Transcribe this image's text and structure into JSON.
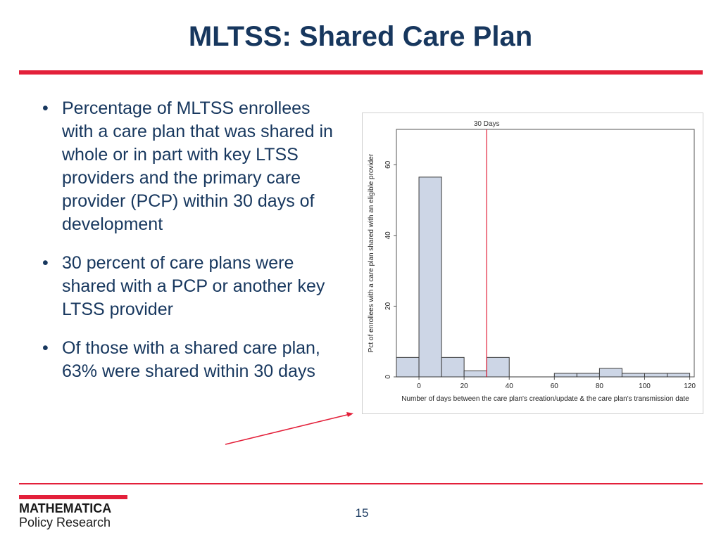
{
  "slide": {
    "title": "MLTSS: Shared Care Plan",
    "page_number": "15",
    "logo": {
      "line1": "MATHEMATICA",
      "line2": "Policy Research"
    },
    "bullets": [
      "Percentage of MLTSS enrollees with a care plan that was shared in whole or in part with key LTSS providers and the primary care provider (PCP) within 30 days of development",
      "30 percent of care plans were shared with a PCP or another key LTSS provider",
      "Of those with a shared care plan, 63% were shared within 30 days"
    ],
    "bullet_glyph": "•",
    "colors": {
      "title": "#17375e",
      "accent": "#e3203a",
      "bar_fill": "#cdd6e6",
      "bar_stroke": "#3a3a3a",
      "ref_line": "#e3203a"
    }
  },
  "chart_data": {
    "type": "bar",
    "subtype": "histogram",
    "xlabel": "Number of days between the care plan's creation/update & the care plan's transmission date",
    "ylabel": "Pct of enrollees with a care plan shared with an eligible provider",
    "xlim": [
      0,
      120
    ],
    "ylim": [
      0,
      70
    ],
    "xticks": [
      0,
      20,
      40,
      60,
      80,
      100,
      120
    ],
    "yticks": [
      0,
      20,
      40,
      60
    ],
    "bins": [
      {
        "x0": -10,
        "x1": 0,
        "value": 5.5
      },
      {
        "x0": 0,
        "x1": 10,
        "value": 56.5
      },
      {
        "x0": 10,
        "x1": 20,
        "value": 5.5
      },
      {
        "x0": 20,
        "x1": 30,
        "value": 1.7
      },
      {
        "x0": 30,
        "x1": 40,
        "value": 5.5
      },
      {
        "x0": 40,
        "x1": 50,
        "value": 0
      },
      {
        "x0": 50,
        "x1": 60,
        "value": 0
      },
      {
        "x0": 60,
        "x1": 70,
        "value": 1.0
      },
      {
        "x0": 70,
        "x1": 80,
        "value": 1.0
      },
      {
        "x0": 80,
        "x1": 90,
        "value": 2.4
      },
      {
        "x0": 90,
        "x1": 100,
        "value": 1.0
      },
      {
        "x0": 100,
        "x1": 110,
        "value": 1.0
      },
      {
        "x0": 110,
        "x1": 120,
        "value": 1.0
      }
    ],
    "reference_line": {
      "x": 30,
      "label": "30 Days"
    },
    "grid": false,
    "legend": "none"
  }
}
